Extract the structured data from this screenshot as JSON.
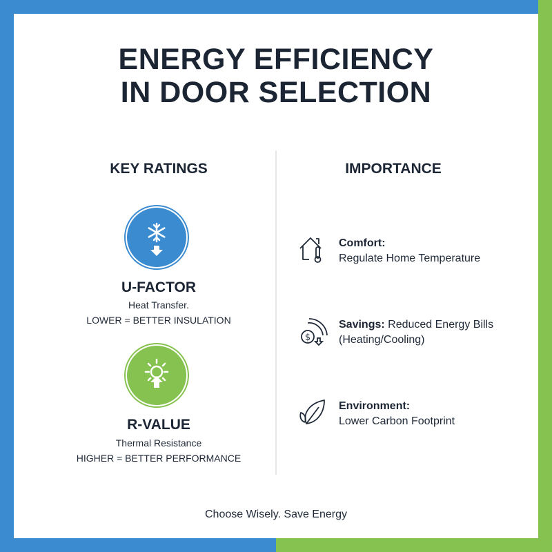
{
  "title": "ENERGY EFFICIENCY IN DOOR SELECTION",
  "colors": {
    "blue": "#3b8bd0",
    "green": "#86c24f",
    "text": "#1c2533"
  },
  "key_ratings": {
    "heading": "KEY RATINGS",
    "items": [
      {
        "icon": "snowflake-arrow-down-icon",
        "name": "U-FACTOR",
        "line1": "Heat Transfer.",
        "line2": "LOWER = BETTER INSULATION"
      },
      {
        "icon": "sun-arrow-up-icon",
        "name": "R-VALUE",
        "line1": "Thermal Resistance",
        "line2": "HIGHER = BETTER PERFORMANCE"
      }
    ]
  },
  "importance": {
    "heading": "IMPORTANCE",
    "items": [
      {
        "icon": "house-thermometer-icon",
        "label": "Comfort:",
        "text": "Regulate Home Temperature"
      },
      {
        "icon": "dollar-savings-icon",
        "label": "Savings:",
        "text": "Reduced Energy Bills (Heating/Cooling)"
      },
      {
        "icon": "leaf-icon",
        "label": "Environment:",
        "text": "Lower Carbon Footprint"
      }
    ]
  },
  "footer": "Choose Wisely. Save Energy"
}
